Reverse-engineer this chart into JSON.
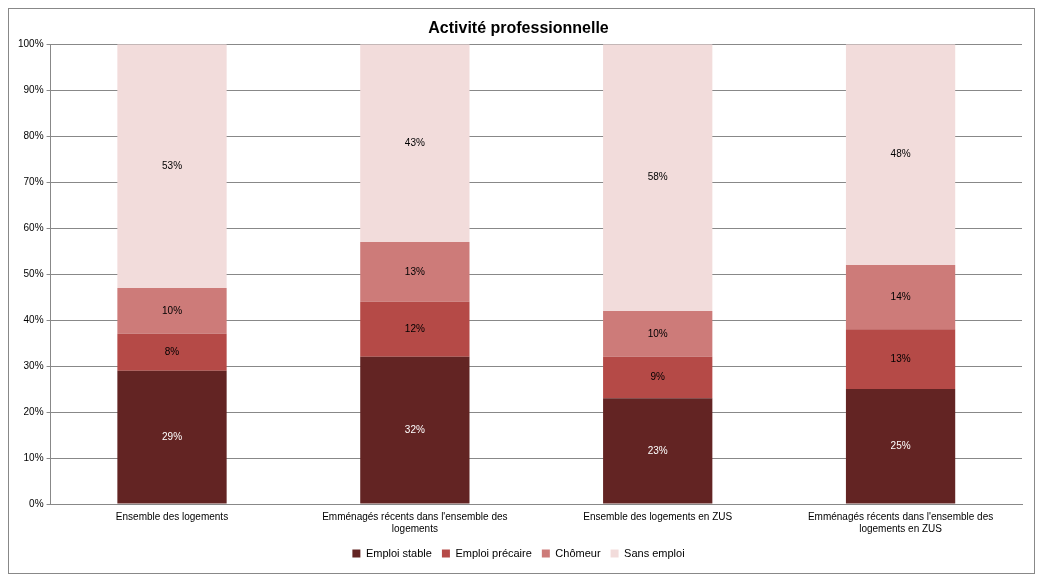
{
  "chart_data": {
    "type": "bar",
    "title": "Activité professionnelle",
    "stacked": true,
    "categories": [
      "Ensemble des logements",
      "Emménagés récents dans l'ensemble des logements",
      "Ensemble des logements en ZUS",
      "Emménagés récents dans l'ensemble des logements en ZUS"
    ],
    "series": [
      {
        "name": "Emploi stable",
        "color": "#632423",
        "values": [
          29,
          32,
          23,
          25
        ],
        "value_labels": [
          "29%",
          "32%",
          "23%",
          "25%"
        ]
      },
      {
        "name": "Emploi précaire",
        "color": "#b54a47",
        "values": [
          8,
          12,
          9,
          13
        ],
        "value_labels": [
          "8%",
          "12%",
          "9%",
          "13%"
        ]
      },
      {
        "name": "Chômeur",
        "color": "#cd7b79",
        "values": [
          10,
          13,
          10,
          14
        ],
        "value_labels": [
          "10%",
          "13%",
          "10%",
          "14%"
        ]
      },
      {
        "name": "Sans emploi",
        "color": "#f2dcdb",
        "values": [
          53,
          43,
          58,
          48
        ],
        "value_labels": [
          "53%",
          "43%",
          "58%",
          "48%"
        ]
      }
    ],
    "ylim": [
      0,
      100
    ],
    "yticks": [
      {
        "value": 0,
        "label": "0%"
      },
      {
        "value": 10,
        "label": "10%"
      },
      {
        "value": 20,
        "label": "20%"
      },
      {
        "value": 30,
        "label": "30%"
      },
      {
        "value": 40,
        "label": "40%"
      },
      {
        "value": 50,
        "label": "50%"
      },
      {
        "value": 60,
        "label": "60%"
      },
      {
        "value": 70,
        "label": "70%"
      },
      {
        "value": 80,
        "label": "80%"
      },
      {
        "value": 90,
        "label": "90%"
      },
      {
        "value": 100,
        "label": "100%"
      }
    ],
    "grid": "y",
    "legend": "bottom"
  }
}
